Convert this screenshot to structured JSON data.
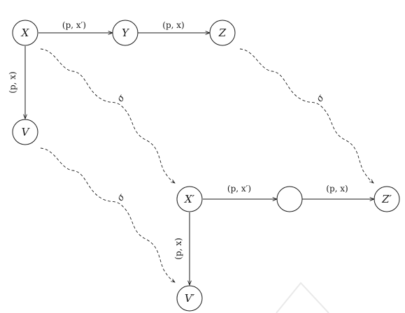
{
  "diagram": {
    "nodes": {
      "X": "X",
      "Y": "Y",
      "Z": "Z",
      "V": "V",
      "Xp": "X′",
      "Blank": "",
      "Zp": "Z′",
      "Vp": "V′"
    },
    "edges": {
      "x_y": "(p, x′)",
      "y_z": "(p, x)",
      "x_v": "(p, x)",
      "xp_blank": "(p, x′)",
      "blank_zp": "(p, x)",
      "xp_vp": "(p, x)"
    },
    "squiggle_labels": {
      "x_to_xp": "σ",
      "z_to_zp": "σ",
      "v_to_vp": "σ"
    }
  }
}
